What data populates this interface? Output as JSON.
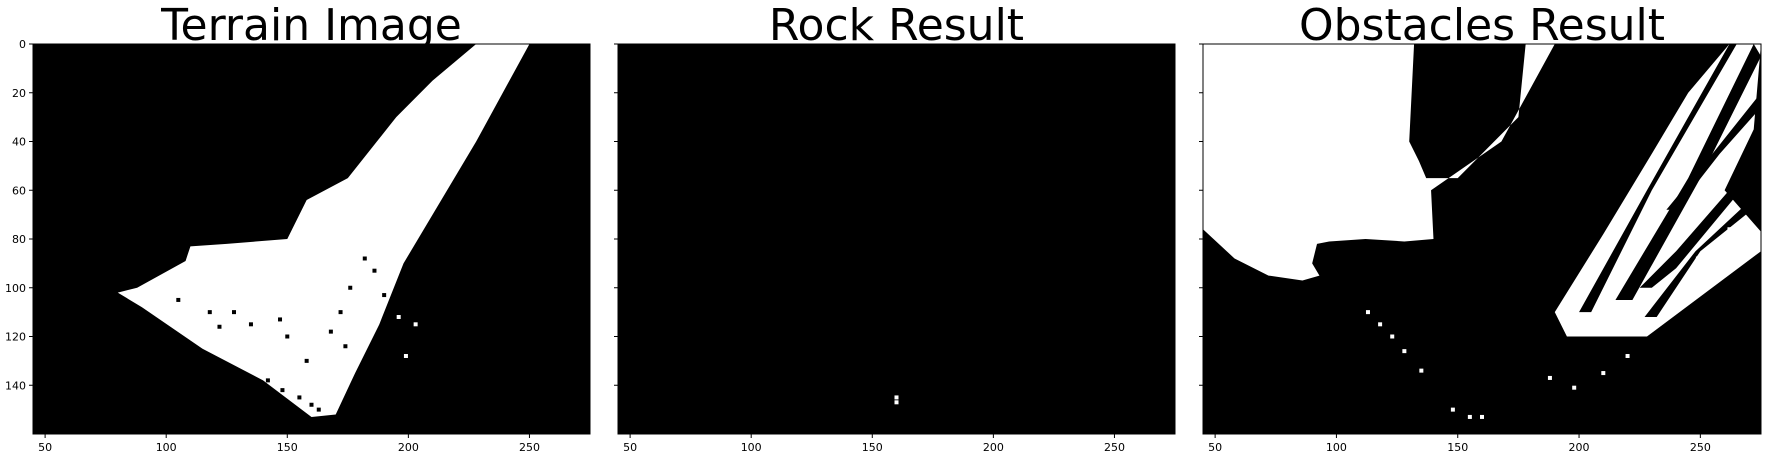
{
  "chart_data": [
    {
      "type": "heatmap",
      "title": "Terrain Image",
      "xlim": [
        45,
        275
      ],
      "ylim": [
        160,
        0
      ],
      "xticks": [
        50,
        100,
        150,
        200,
        250
      ],
      "yticks": [
        0,
        20,
        40,
        60,
        80,
        100,
        120,
        140
      ],
      "colors": {
        "background": "#000000",
        "foreground": "#ffffff"
      },
      "white_regions": [
        {
          "name": "terrain-mask",
          "points": [
            [
              245,
              0
            ],
            [
              250,
              0
            ],
            [
              228,
              40
            ],
            [
              210,
              70
            ],
            [
              198,
              90
            ],
            [
              188,
              115
            ],
            [
              178,
              135
            ],
            [
              170,
              152
            ],
            [
              160,
              153
            ],
            [
              140,
              138
            ],
            [
              115,
              125
            ],
            [
              90,
              108
            ],
            [
              80,
              102
            ],
            [
              88,
              100
            ],
            [
              108,
              89
            ],
            [
              110,
              83
            ],
            [
              125,
              82
            ],
            [
              150,
              80
            ],
            [
              158,
              64
            ],
            [
              175,
              55
            ],
            [
              187,
              40
            ],
            [
              195,
              30
            ],
            [
              210,
              15
            ],
            [
              228,
              0
            ]
          ]
        }
      ],
      "black_speckles": [
        {
          "x": 105,
          "y": 105
        },
        {
          "x": 118,
          "y": 110
        },
        {
          "x": 122,
          "y": 116
        },
        {
          "x": 128,
          "y": 110
        },
        {
          "x": 135,
          "y": 115
        },
        {
          "x": 147,
          "y": 113
        },
        {
          "x": 150,
          "y": 120
        },
        {
          "x": 142,
          "y": 138
        },
        {
          "x": 148,
          "y": 142
        },
        {
          "x": 155,
          "y": 145
        },
        {
          "x": 160,
          "y": 148
        },
        {
          "x": 163,
          "y": 150
        },
        {
          "x": 182,
          "y": 88
        },
        {
          "x": 186,
          "y": 93
        },
        {
          "x": 190,
          "y": 103
        },
        {
          "x": 174,
          "y": 124
        },
        {
          "x": 172,
          "y": 110
        },
        {
          "x": 168,
          "y": 118
        },
        {
          "x": 176,
          "y": 100
        },
        {
          "x": 158,
          "y": 130
        }
      ],
      "white_speckles": [
        {
          "x": 196,
          "y": 112
        },
        {
          "x": 203,
          "y": 115
        },
        {
          "x": 199,
          "y": 128
        },
        {
          "x": 183,
          "y": 103
        }
      ]
    },
    {
      "type": "heatmap",
      "title": "Rock Result",
      "xlim": [
        45,
        275
      ],
      "ylim": [
        160,
        0
      ],
      "xticks": [
        50,
        100,
        150,
        200,
        250
      ],
      "yticks": [
        0,
        20,
        40,
        60,
        80,
        100,
        120,
        140
      ],
      "colors": {
        "background": "#000000",
        "foreground": "#ffffff"
      },
      "white_regions": [],
      "black_speckles": [],
      "white_speckles": [
        {
          "x": 160,
          "y": 145
        },
        {
          "x": 160,
          "y": 147
        }
      ]
    },
    {
      "type": "heatmap",
      "title": "Obstacles Result",
      "xlim": [
        45,
        275
      ],
      "ylim": [
        160,
        0
      ],
      "xticks": [
        50,
        100,
        150,
        200,
        250
      ],
      "yticks": [
        0,
        20,
        40,
        60,
        80,
        100,
        120,
        140
      ],
      "colors": {
        "background": "#000000",
        "foreground": "#ffffff"
      },
      "white_regions": [
        {
          "name": "upper-left-obstacle",
          "points": [
            [
              45,
              0
            ],
            [
              132,
              0
            ],
            [
              130,
              40
            ],
            [
              134,
              48
            ],
            [
              137,
              55
            ],
            [
              150,
              55
            ],
            [
              160,
              45
            ],
            [
              175,
              30
            ],
            [
              178,
              0
            ],
            [
              190,
              0
            ],
            [
              168,
              40
            ],
            [
              139,
              60
            ],
            [
              140,
              80
            ],
            [
              128,
              81
            ],
            [
              112,
              80
            ],
            [
              97,
              81
            ],
            [
              92,
              82
            ],
            [
              90,
              90
            ],
            [
              93,
              95
            ],
            [
              86,
              97
            ],
            [
              72,
              95
            ],
            [
              58,
              88
            ],
            [
              45,
              76
            ]
          ]
        },
        {
          "name": "lower-right-obstacle",
          "points": [
            [
              275,
              77
            ],
            [
              275,
              85
            ],
            [
              228,
              120
            ],
            [
              195,
              120
            ],
            [
              190,
              110
            ],
            [
              210,
              78
            ],
            [
              230,
              45
            ],
            [
              245,
              20
            ],
            [
              262,
              0
            ],
            [
              275,
              0
            ],
            [
              272,
              35
            ],
            [
              260,
              60
            ],
            [
              275,
              77
            ]
          ]
        }
      ],
      "black_regions": [
        {
          "name": "stripe-1",
          "points": [
            [
              262,
              0
            ],
            [
              265,
              0
            ],
            [
              230,
              60
            ],
            [
              205,
              110
            ],
            [
              200,
              110
            ],
            [
              228,
              60
            ]
          ]
        },
        {
          "name": "stripe-2",
          "points": [
            [
              272,
              0
            ],
            [
              275,
              5
            ],
            [
              250,
              55
            ],
            [
              222,
              105
            ],
            [
              215,
              105
            ],
            [
              245,
              55
            ]
          ]
        },
        {
          "name": "stripe-3",
          "points": [
            [
              275,
              45
            ],
            [
              275,
              50
            ],
            [
              240,
              92
            ],
            [
              230,
              100
            ],
            [
              225,
              100
            ],
            [
              240,
              85
            ]
          ]
        },
        {
          "name": "stripe-4",
          "points": [
            [
              275,
              60
            ],
            [
              275,
              65
            ],
            [
              250,
              85
            ],
            [
              232,
              112
            ],
            [
              227,
              112
            ],
            [
              248,
              85
            ]
          ]
        },
        {
          "name": "stripe-5",
          "points": [
            [
              275,
              20
            ],
            [
              275,
              26
            ],
            [
              258,
              45
            ],
            [
              240,
              68
            ],
            [
              236,
              68
            ],
            [
              255,
              45
            ]
          ]
        }
      ],
      "white_speckles": [
        {
          "x": 113,
          "y": 110
        },
        {
          "x": 118,
          "y": 115
        },
        {
          "x": 123,
          "y": 120
        },
        {
          "x": 128,
          "y": 126
        },
        {
          "x": 135,
          "y": 134
        },
        {
          "x": 148,
          "y": 150
        },
        {
          "x": 155,
          "y": 153
        },
        {
          "x": 160,
          "y": 153
        },
        {
          "x": 188,
          "y": 137
        },
        {
          "x": 198,
          "y": 141
        },
        {
          "x": 210,
          "y": 135
        },
        {
          "x": 220,
          "y": 128
        },
        {
          "x": 249,
          "y": 88
        },
        {
          "x": 262,
          "y": 76
        }
      ]
    }
  ]
}
